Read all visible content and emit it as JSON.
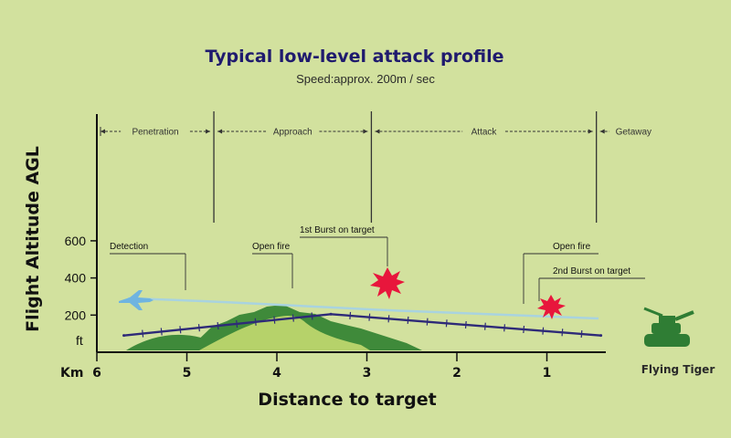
{
  "colors": {
    "background": "#d2e19e",
    "flight_path": "#2e2a78",
    "ground_line": "#a9d3df",
    "hill_dark": "#3f8a3a",
    "hill_light": "#b6d26a",
    "burst": "#e8163c",
    "jet": "#6fb4e0",
    "tank": "#2f7d34"
  },
  "icons": {
    "aircraft": "jet-icon",
    "burst": "explosion-icon",
    "tank": "tank-icon"
  },
  "chart_data": {
    "type": "line",
    "title": "Typical low-level attack profile",
    "subtitle": "Speed:approx. 200m / sec",
    "xlabel": "Distance to target",
    "ylabel": "Flight Altitude AGL",
    "x_unit": "Km",
    "y_unit": "ft",
    "xlim": [
      6,
      0
    ],
    "ylim": [
      0,
      650
    ],
    "x_ticks": [
      6,
      5,
      4,
      3,
      2,
      1
    ],
    "x_tick_labels": [
      "6",
      "5",
      "4",
      "3",
      "2",
      "1"
    ],
    "y_ticks": [
      200,
      400,
      600
    ],
    "y_tick_labels": [
      "200",
      "400",
      "600"
    ],
    "series": [
      {
        "x": [
          5.7,
          3.4,
          0.4
        ],
        "y": [
          90,
          205,
          90
        ]
      }
    ],
    "phases": [
      {
        "label": "Penetration",
        "from": 6,
        "to": 4.7
      },
      {
        "label": "Approach",
        "from": 4.7,
        "to": 2.95
      },
      {
        "label": "Attack",
        "from": 2.95,
        "to": 0.45
      },
      {
        "label": "Getaway",
        "from": 0.45,
        "to": 0
      }
    ],
    "annotations": [
      {
        "label": "Detection",
        "x": 5.0,
        "y": 160
      },
      {
        "label": "Open fire",
        "x": 4.2,
        "y": 175
      },
      {
        "label": "1st Burst on target",
        "x": 2.75,
        "y": 200
      },
      {
        "label": "Open fire",
        "x": 1.3,
        "y": 120
      },
      {
        "label": "2nd Burst on target",
        "x": 0.95,
        "y": 130
      }
    ]
  },
  "legend": {
    "brand": "Flying Tiger"
  }
}
